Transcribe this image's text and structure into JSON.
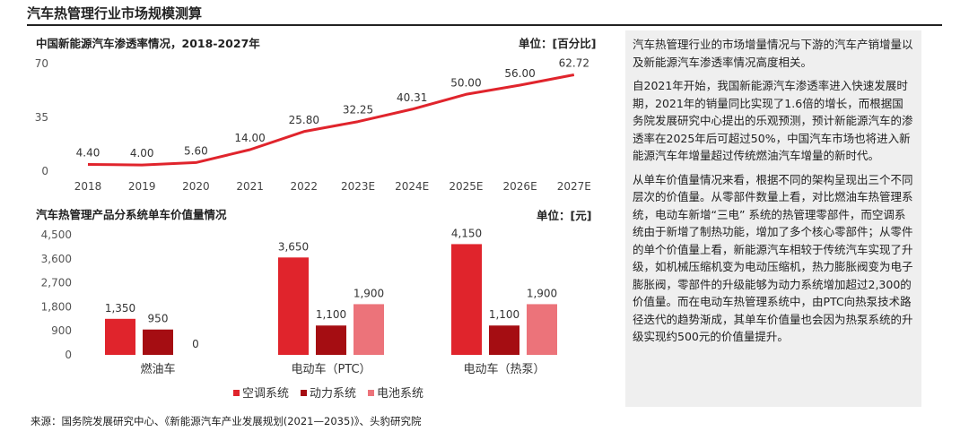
{
  "page": {
    "title": "汽车热管理行业市场规模测算",
    "source": "来源：国务院发展研究中心、《新能源汽车产业发展规划(2021—2035)》、头豹研究院"
  },
  "chart_data": [
    {
      "type": "line",
      "title": "中国新能源汽车渗透率情况，2018-2027年",
      "unit": "单位：[百分比]",
      "x": [
        "2018",
        "2019",
        "2020",
        "2021",
        "2022",
        "2023E",
        "2024E",
        "2025E",
        "2026E",
        "2027E"
      ],
      "values": [
        4.4,
        4.0,
        5.6,
        14.0,
        25.8,
        32.25,
        40.31,
        50.0,
        56.0,
        62.72
      ],
      "value_labels": [
        "4.40",
        "4.00",
        "5.60",
        "14.00",
        "25.80",
        "32.25",
        "40.31",
        "50.00",
        "56.00",
        "62.72"
      ],
      "yticks": [
        "0",
        "35",
        "70"
      ],
      "ylim": [
        0,
        70
      ],
      "color": "#e0242c",
      "grid": false
    },
    {
      "type": "bar",
      "title": "汽车热管理产品分系统单车价值量情况",
      "unit": "单位：[元]",
      "categories": [
        "燃油车",
        "电动车（PTC）",
        "电动车（热泵）"
      ],
      "series": [
        {
          "name": "空调系统",
          "color": "#e0242c",
          "values": [
            1350,
            3650,
            4150
          ],
          "labels": [
            "1,350",
            "3,650",
            "4,150"
          ]
        },
        {
          "name": "动力系统",
          "color": "#a50d12",
          "values": [
            950,
            1100,
            1100
          ],
          "labels": [
            "950",
            "1,100",
            "1,100"
          ]
        },
        {
          "name": "电池系统",
          "color": "#ec737a",
          "values": [
            0,
            1900,
            1900
          ],
          "labels": [
            "0",
            "1,900",
            "1,900"
          ]
        }
      ],
      "yticks": [
        "0",
        "900",
        "1,800",
        "2,700",
        "3,600",
        "4,500"
      ],
      "ylim": [
        0,
        4500
      ],
      "legend_position": "bottom",
      "grid": false
    }
  ],
  "side_text": [
    "汽车热管理行业的市场增量情况与下游的汽车产销增量以及新能源汽车渗透率情况高度相关。",
    "自2021年开始，我国新能源汽车渗透率进入快速发展时期，2021年的销量同比实现了1.6倍的增长，而根据国务院发展研究中心提出的乐观预测，预计新能源汽车的渗透率在2025年后可超过50%，中国汽车市场也将进入新能源汽车年增量超过传统燃油汽车增量的新时代。",
    "从单车价值量情况来看，根据不同的架构呈现出三个不同层次的价值量。从零部件数量上看，对比燃油车热管理系统，电动车新增“三电” 系统的热管理零部件，而空调系统由于新增了制热功能，增加了多个核心零部件；从零件的单个价值量上看，新能源汽车相较于传统汽车实现了升级，如机械压缩机变为电动压缩机，热力膨胀阀变为电子膨胀阀，零部件的升级能够为动力系统增加超过2,300的价值量。而在电动车热管理系统中，由PTC向热泵技术路径迭代的趋势渐成，其单车价值量也会因为热泵系统的升级实现约500元的价值量提升。"
  ]
}
